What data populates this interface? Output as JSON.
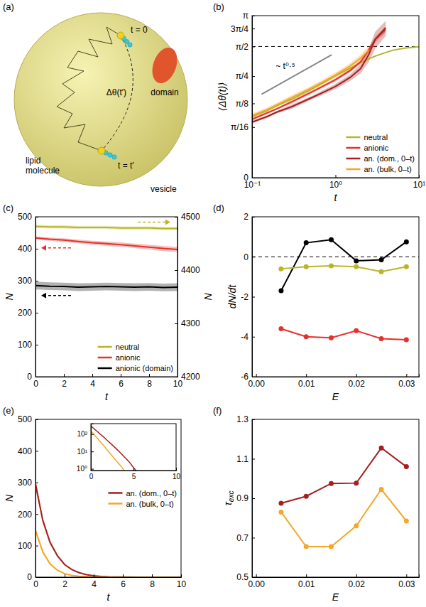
{
  "diagram": {
    "label": "(a)",
    "t0": "t = 0",
    "t1": "t = t′",
    "angle": "Δθ(t′)",
    "domain": "domain",
    "lipid": "lipid molecule",
    "vesicle": "vesicle"
  },
  "chart_data": [
    {
      "label": "(b)",
      "type": "line",
      "log": true,
      "x_label": "t",
      "y_label": "⟨Δθ(t)⟩",
      "xlim": [
        0.1,
        10
      ],
      "xticks": [
        {
          "value": 0.1,
          "label": "10⁻¹"
        },
        {
          "value": 1,
          "label": "10⁰"
        },
        {
          "value": 10,
          "label": "10¹"
        }
      ],
      "ylim": [
        0,
        3.14159
      ],
      "yticks": [
        0,
        {
          "value": 0.19635,
          "label": "π/16"
        },
        {
          "value": 0.3927,
          "label": "π/8"
        },
        {
          "value": 0.7854,
          "label": "π/4"
        },
        {
          "value": 1.5708,
          "label": "π/2"
        },
        {
          "value": 2.35619,
          "label": "3π/4"
        },
        {
          "value": 3.14159,
          "label": "π"
        }
      ],
      "legend": "lower right",
      "reference_line": {
        "y": 1.5708,
        "line_style": "dashed"
      },
      "guide": {
        "text": "~ t⁰·⁵",
        "x": [
          0.13,
          0.9
        ],
        "y": [
          0.5,
          1.3
        ]
      },
      "x": [
        0.1,
        0.15,
        0.2,
        0.3,
        0.5,
        0.7,
        1,
        1.5,
        2,
        2.5,
        3,
        4,
        5,
        7,
        10
      ],
      "series": [
        {
          "name": "neutral",
          "color": "#b8b52b",
          "values": [
            0.27,
            0.32,
            0.37,
            0.44,
            0.56,
            0.66,
            0.79,
            0.95,
            1.08,
            1.18,
            1.26,
            1.37,
            1.45,
            1.52,
            1.56
          ],
          "errors": [
            0.01,
            0.01,
            0.01,
            0.01,
            0.02,
            0.02,
            0.02,
            0.02,
            0.02,
            0.02,
            0.02,
            0.02,
            0.02,
            0.02,
            0.02
          ]
        },
        {
          "name": "anionic",
          "color": "#e5312b",
          "values": [
            0.25,
            0.3,
            0.34,
            0.41,
            0.52,
            0.61,
            0.72,
            0.9,
            1.1,
            1.45,
            1.85,
            2.3,
            null,
            null,
            null
          ],
          "errors": [
            0.01,
            0.01,
            0.01,
            0.02,
            0.02,
            0.02,
            0.03,
            0.04,
            0.05,
            0.08,
            0.12,
            0.15,
            null,
            null,
            null
          ]
        },
        {
          "name": "an. (dom., 0–t)",
          "color": "#a3201f",
          "values": [
            0.23,
            0.27,
            0.31,
            0.36,
            0.45,
            0.52,
            0.61,
            0.76,
            0.94,
            1.3,
            1.85,
            2.4,
            null,
            null,
            null
          ],
          "errors": [
            0.01,
            0.01,
            0.01,
            0.02,
            0.02,
            0.03,
            0.04,
            0.06,
            0.1,
            0.2,
            0.35,
            0.4,
            null,
            null,
            null
          ]
        },
        {
          "name": "an. (bulk, 0–t)",
          "color": "#f4a72a",
          "values": [
            0.28,
            0.33,
            0.38,
            0.46,
            0.58,
            0.68,
            0.81,
            1.0,
            1.2,
            1.45,
            null,
            null,
            null,
            null,
            null
          ],
          "errors": [
            0.02,
            0.02,
            0.02,
            0.03,
            0.03,
            0.04,
            0.05,
            0.07,
            0.1,
            0.15,
            null,
            null,
            null,
            null,
            null
          ]
        }
      ]
    },
    {
      "label": "(c)",
      "type": "line",
      "x_label": "t",
      "y_label": "N",
      "y2_label": "N",
      "xlim": [
        0,
        10
      ],
      "xticks": [
        0,
        2,
        4,
        6,
        8,
        10
      ],
      "ylim": [
        0,
        500
      ],
      "yticks": [
        0,
        100,
        200,
        300,
        400,
        500
      ],
      "y2lim": [
        4200,
        4500
      ],
      "y2ticks": [
        4200,
        4300,
        4400,
        4500
      ],
      "legend": "lower right",
      "x": [
        0,
        1,
        2,
        3,
        4,
        5,
        6,
        7,
        8,
        9,
        10
      ],
      "series": [
        {
          "name": "neutral",
          "color": "#b8b52b",
          "axis": "y2",
          "values": [
            4482,
            4481,
            4481,
            4480,
            4480,
            4480,
            4479,
            4479,
            4479,
            4478,
            4478
          ],
          "errors": [
            3,
            3,
            3,
            3,
            3,
            3,
            3,
            3,
            3,
            3,
            3
          ]
        },
        {
          "name": "anionic",
          "color": "#e5312b",
          "values": [
            434,
            430,
            427,
            423,
            419,
            416,
            413,
            409,
            405,
            401,
            398
          ],
          "errors": [
            5,
            5,
            6,
            6,
            6,
            7,
            7,
            7,
            8,
            8,
            8
          ]
        },
        {
          "name": "anionic (domain)",
          "color": "#000000",
          "values": [
            285,
            283,
            282,
            280,
            281,
            282,
            281,
            280,
            281,
            279,
            280
          ],
          "errors": [
            12,
            12,
            12,
            12,
            12,
            12,
            12,
            12,
            12,
            12,
            12
          ]
        }
      ]
    },
    {
      "label": "(d)",
      "type": "line",
      "marker": "circle",
      "x_label": "E",
      "y_label": "dN/dt",
      "xlim": [
        -0.0008,
        0.0325
      ],
      "xticks": [
        {
          "value": 0,
          "label": "0.00"
        },
        0.01,
        0.02,
        0.03
      ],
      "ylim": [
        -6,
        2
      ],
      "yticks": [
        -6,
        -4,
        -2,
        0,
        2
      ],
      "reference_line": {
        "y": 0,
        "line_style": "dashed"
      },
      "x": [
        0.005,
        0.01,
        0.015,
        0.02,
        0.025,
        0.03
      ],
      "series": [
        {
          "color": "#000000",
          "values": [
            -1.7,
            0.7,
            0.85,
            -0.2,
            -0.15,
            0.75
          ]
        },
        {
          "color": "#b8b52b",
          "values": [
            -0.6,
            -0.5,
            -0.45,
            -0.5,
            -0.75,
            -0.5
          ]
        },
        {
          "color": "#e5312b",
          "values": [
            -3.6,
            -4.0,
            -4.05,
            -3.7,
            -4.1,
            -4.15
          ]
        }
      ]
    },
    {
      "label": "(e)",
      "type": "line",
      "x_label": "t",
      "y_label": "N",
      "xlim": [
        0,
        10
      ],
      "xticks": [
        0,
        2,
        4,
        6,
        8,
        10
      ],
      "ylim": [
        0,
        500
      ],
      "yticks": [
        0,
        100,
        200,
        300,
        400,
        500
      ],
      "legend": "center right",
      "x": [
        0,
        0.5,
        1,
        1.5,
        2,
        2.5,
        3,
        3.5,
        4,
        4.5,
        5,
        6,
        7,
        8,
        9,
        10
      ],
      "series": [
        {
          "name": "an. (dom., 0–t)",
          "color": "#a3201f",
          "values": [
            295,
            180,
            110,
            68,
            40,
            24,
            14,
            8,
            4.5,
            2.5,
            1.2,
            0.3,
            0.1,
            0,
            0,
            0
          ],
          "errors": [
            15,
            10,
            7,
            5,
            3,
            2,
            1.5,
            1,
            0.7,
            0.5,
            0.3,
            0.2,
            0.1,
            0,
            0,
            0
          ]
        },
        {
          "name": "an. (bulk, 0–t)",
          "color": "#f4a72a",
          "values": [
            148,
            80,
            42,
            22,
            11,
            5.5,
            2.8,
            1.5,
            0.7,
            0.4,
            0.2,
            0,
            0,
            0,
            0,
            0
          ],
          "errors": [
            8,
            6,
            4,
            3,
            2,
            1.2,
            0.8,
            0.5,
            0.3,
            0.2,
            0.1,
            0,
            0,
            0,
            0,
            0
          ]
        }
      ],
      "inset": {
        "log": "y",
        "xlim": [
          0,
          10
        ],
        "xticks": [
          0,
          5,
          10
        ],
        "ylim": [
          0.8,
          400
        ],
        "yticks": [
          {
            "value": 1,
            "label": "10⁰"
          },
          {
            "value": 10,
            "label": "10¹"
          },
          {
            "value": 100,
            "label": "10²"
          }
        ]
      }
    },
    {
      "label": "(f)",
      "type": "line",
      "marker": "circle",
      "x_label": "E",
      "y_label": "τ",
      "y_label_sub": "exc",
      "xlim": [
        -0.0008,
        0.0325
      ],
      "xticks": [
        {
          "value": 0,
          "label": "0.00"
        },
        0.01,
        0.02,
        0.03
      ],
      "ylim": [
        0.5,
        1.3
      ],
      "yticks": [
        0.5,
        0.7,
        0.9,
        1.1,
        1.3
      ],
      "x": [
        0.005,
        0.01,
        0.015,
        0.02,
        0.025,
        0.03
      ],
      "series": [
        {
          "color": "#a3201f",
          "values": [
            0.875,
            0.91,
            0.975,
            0.977,
            1.155,
            1.06
          ]
        },
        {
          "color": "#f4a72a",
          "values": [
            0.83,
            0.655,
            0.655,
            0.76,
            0.945,
            0.785
          ]
        }
      ]
    }
  ]
}
